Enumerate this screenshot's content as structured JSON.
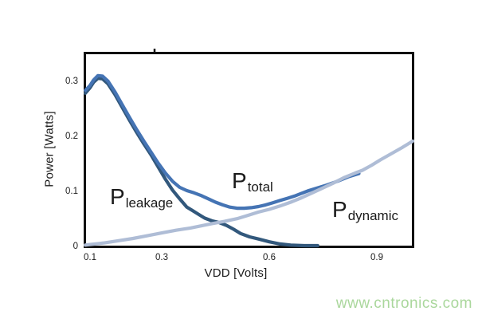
{
  "watermark": {
    "text": "www.cntronics.com",
    "color": "#aad79c"
  },
  "chart_data": {
    "type": "line",
    "title": "",
    "xlabel": "VDD [Volts]",
    "ylabel": "Power [Watts]",
    "xlim": [
      0.087,
      1.0
    ],
    "ylim": [
      0,
      0.35
    ],
    "x_ticks": [
      0.1,
      0.3,
      0.6,
      0.9
    ],
    "y_ticks": [
      0,
      0.1,
      0.2,
      0.3
    ],
    "grid": false,
    "legend_position": "inline-annotations",
    "frame_color": "#111111",
    "top_tick_vdd": 0.28,
    "annotations": [
      {
        "main": "P",
        "sub": "leakage"
      },
      {
        "main": "P",
        "sub": "total"
      },
      {
        "main": "P",
        "sub": "dynamic"
      }
    ],
    "series": [
      {
        "name": "P_leakage",
        "color": "#32587c",
        "points": [
          [
            0.087,
            0.277
          ],
          [
            0.1,
            0.287
          ],
          [
            0.11,
            0.297
          ],
          [
            0.122,
            0.304
          ],
          [
            0.135,
            0.303
          ],
          [
            0.15,
            0.294
          ],
          [
            0.17,
            0.274
          ],
          [
            0.19,
            0.251
          ],
          [
            0.21,
            0.228
          ],
          [
            0.23,
            0.206
          ],
          [
            0.25,
            0.185
          ],
          [
            0.27,
            0.165
          ],
          [
            0.29,
            0.143
          ],
          [
            0.31,
            0.121
          ],
          [
            0.33,
            0.101
          ],
          [
            0.35,
            0.085
          ],
          [
            0.37,
            0.07
          ],
          [
            0.385,
            0.064
          ],
          [
            0.4,
            0.058
          ],
          [
            0.42,
            0.05
          ],
          [
            0.44,
            0.045
          ],
          [
            0.46,
            0.042
          ],
          [
            0.48,
            0.037
          ],
          [
            0.5,
            0.03
          ],
          [
            0.52,
            0.022
          ],
          [
            0.545,
            0.016
          ],
          [
            0.57,
            0.012
          ],
          [
            0.6,
            0.007
          ],
          [
            0.63,
            0.003
          ],
          [
            0.66,
            0.001
          ],
          [
            0.7,
            0.0
          ],
          [
            0.735,
            0.0
          ]
        ]
      },
      {
        "name": "P_total",
        "color": "#4574b4",
        "points": [
          [
            0.087,
            0.282
          ],
          [
            0.1,
            0.291
          ],
          [
            0.11,
            0.301
          ],
          [
            0.122,
            0.309
          ],
          [
            0.135,
            0.308
          ],
          [
            0.15,
            0.299
          ],
          [
            0.17,
            0.279
          ],
          [
            0.19,
            0.256
          ],
          [
            0.21,
            0.233
          ],
          [
            0.23,
            0.211
          ],
          [
            0.25,
            0.19
          ],
          [
            0.27,
            0.17
          ],
          [
            0.29,
            0.15
          ],
          [
            0.31,
            0.132
          ],
          [
            0.33,
            0.117
          ],
          [
            0.35,
            0.106
          ],
          [
            0.37,
            0.1
          ],
          [
            0.39,
            0.096
          ],
          [
            0.41,
            0.091
          ],
          [
            0.43,
            0.085
          ],
          [
            0.45,
            0.079
          ],
          [
            0.47,
            0.074
          ],
          [
            0.49,
            0.07
          ],
          [
            0.51,
            0.068
          ],
          [
            0.53,
            0.068
          ],
          [
            0.55,
            0.069
          ],
          [
            0.57,
            0.071
          ],
          [
            0.59,
            0.074
          ],
          [
            0.61,
            0.078
          ],
          [
            0.63,
            0.082
          ],
          [
            0.65,
            0.086
          ],
          [
            0.67,
            0.09
          ],
          [
            0.69,
            0.095
          ],
          [
            0.71,
            0.1
          ],
          [
            0.73,
            0.104
          ],
          [
            0.76,
            0.11
          ],
          [
            0.79,
            0.117
          ],
          [
            0.82,
            0.125
          ],
          [
            0.85,
            0.131
          ]
        ]
      },
      {
        "name": "P_dynamic",
        "color": "#afbdd6",
        "points": [
          [
            0.087,
            0.001
          ],
          [
            0.1,
            0.002
          ],
          [
            0.14,
            0.005
          ],
          [
            0.18,
            0.009
          ],
          [
            0.22,
            0.013
          ],
          [
            0.26,
            0.018
          ],
          [
            0.3,
            0.023
          ],
          [
            0.34,
            0.028
          ],
          [
            0.38,
            0.032
          ],
          [
            0.41,
            0.036
          ],
          [
            0.44,
            0.04
          ],
          [
            0.475,
            0.044
          ],
          [
            0.51,
            0.049
          ],
          [
            0.54,
            0.055
          ],
          [
            0.57,
            0.061
          ],
          [
            0.6,
            0.066
          ],
          [
            0.63,
            0.072
          ],
          [
            0.66,
            0.079
          ],
          [
            0.69,
            0.087
          ],
          [
            0.72,
            0.096
          ],
          [
            0.75,
            0.105
          ],
          [
            0.78,
            0.114
          ],
          [
            0.81,
            0.124
          ],
          [
            0.84,
            0.132
          ],
          [
            0.86,
            0.137
          ],
          [
            0.885,
            0.146
          ],
          [
            0.91,
            0.156
          ],
          [
            0.94,
            0.167
          ],
          [
            0.97,
            0.178
          ],
          [
            1.0,
            0.19
          ]
        ]
      }
    ]
  }
}
